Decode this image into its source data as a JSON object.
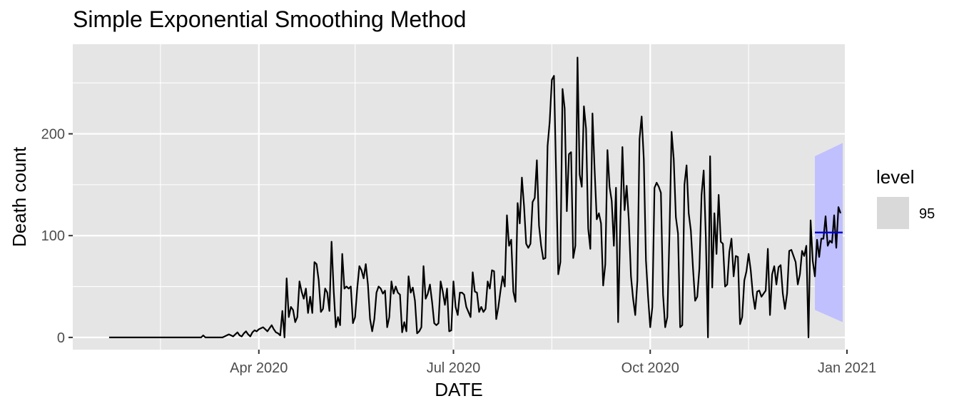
{
  "chart_data": {
    "type": "line",
    "title": "Simple Exponential Smoothing Method",
    "xlabel": "DATE",
    "ylabel": "Death count",
    "x_range": [
      "2020-01-05",
      "2020-12-31"
    ],
    "ylim": [
      -12,
      288
    ],
    "y_ticks": [
      0,
      100,
      200
    ],
    "x_ticks": [
      {
        "date": "2020-04-01",
        "label": "Apr 2020"
      },
      {
        "date": "2020-07-01",
        "label": "Jul 2020"
      },
      {
        "date": "2020-10-01",
        "label": "Oct 2020"
      },
      {
        "date": "2021-01-01",
        "label": "Jan 2021"
      }
    ],
    "x_minor_ticks": [
      "2020-02-15",
      "2020-05-16",
      "2020-08-16",
      "2020-11-16"
    ],
    "grid": true,
    "background": "#e5e5e5",
    "series": [
      {
        "color": "#000000",
        "x_start": "2020-01-22",
        "values": [
          0,
          0,
          0,
          0,
          0,
          0,
          0,
          0,
          0,
          0,
          0,
          0,
          0,
          0,
          0,
          0,
          0,
          0,
          0,
          0,
          0,
          0,
          0,
          0,
          0,
          0,
          0,
          0,
          0,
          0,
          0,
          0,
          0,
          0,
          0,
          0,
          0,
          0,
          0,
          0,
          0,
          0,
          0,
          0,
          2,
          0,
          0,
          0,
          0,
          0,
          0,
          0,
          0,
          0,
          1,
          2,
          3,
          2,
          1,
          3,
          5,
          2,
          1,
          4,
          6,
          3,
          1,
          5,
          7,
          6,
          8,
          9,
          10,
          8,
          6,
          9,
          12,
          8,
          5,
          4,
          2,
          26,
          0,
          58,
          20,
          30,
          27,
          15,
          20,
          55,
          45,
          38,
          48,
          24,
          40,
          24,
          74,
          72,
          56,
          25,
          28,
          48,
          44,
          26,
          94,
          46,
          10,
          20,
          12,
          82,
          48,
          50,
          48,
          50,
          14,
          20,
          48,
          70,
          66,
          58,
          72,
          52,
          18,
          6,
          18,
          44,
          50,
          48,
          43,
          46,
          10,
          20,
          55,
          43,
          50,
          44,
          42,
          5,
          15,
          6,
          60,
          44,
          49,
          36,
          4,
          6,
          10,
          70,
          38,
          43,
          52,
          35,
          14,
          12,
          14,
          55,
          45,
          32,
          48,
          6,
          7,
          55,
          30,
          22,
          44,
          44,
          42,
          30,
          25,
          20,
          64,
          45,
          44,
          25,
          30,
          25,
          28,
          55,
          48,
          66,
          65,
          18,
          30,
          46,
          60,
          50,
          120,
          90,
          96,
          45,
          35,
          132,
          112,
          157,
          129,
          92,
          88,
          92,
          133,
          137,
          174,
          110,
          90,
          77,
          78,
          188,
          212,
          253,
          257,
          160,
          62,
          74,
          244,
          225,
          124,
          180,
          182,
          78,
          90,
          275,
          160,
          148,
          227,
          205,
          107,
          87,
          220,
          165,
          116,
          122,
          112,
          51,
          72,
          184,
          148,
          134,
          90,
          147,
          15,
          110,
          187,
          125,
          149,
          115,
          60,
          38,
          22,
          56,
          195,
          217,
          175,
          76,
          40,
          10,
          30,
          147,
          152,
          148,
          142,
          42,
          10,
          20,
          101,
          202,
          175,
          118,
          102,
          10,
          12,
          150,
          169,
          122,
          105,
          68,
          36,
          40,
          68,
          140,
          164,
          99,
          0,
          178,
          49,
          122,
          82,
          140,
          94,
          92,
          50,
          52,
          84,
          97,
          60,
          80,
          79,
          13,
          20,
          56,
          65,
          82,
          66,
          42,
          28,
          45,
          46,
          40,
          43,
          46,
          87,
          22,
          62,
          70,
          52,
          69,
          71,
          43,
          28,
          43,
          85,
          86,
          80,
          74,
          52,
          62,
          85,
          80,
          90,
          0,
          115,
          75,
          60,
          96,
          79,
          97,
          97,
          119,
          90,
          95,
          93,
          120,
          88,
          128,
          122
        ]
      }
    ],
    "forecast": {
      "color": "#0000cd",
      "x": [
        "2020-12-17",
        "2020-12-30"
      ],
      "point": [
        103,
        103
      ],
      "lower": [
        27,
        15
      ],
      "upper": [
        178,
        191
      ],
      "band_color": "#c0c0ff"
    },
    "legend": {
      "title": "level",
      "items": [
        {
          "label": "95",
          "color": "#d9d9d9"
        }
      ],
      "placement": "right"
    }
  }
}
